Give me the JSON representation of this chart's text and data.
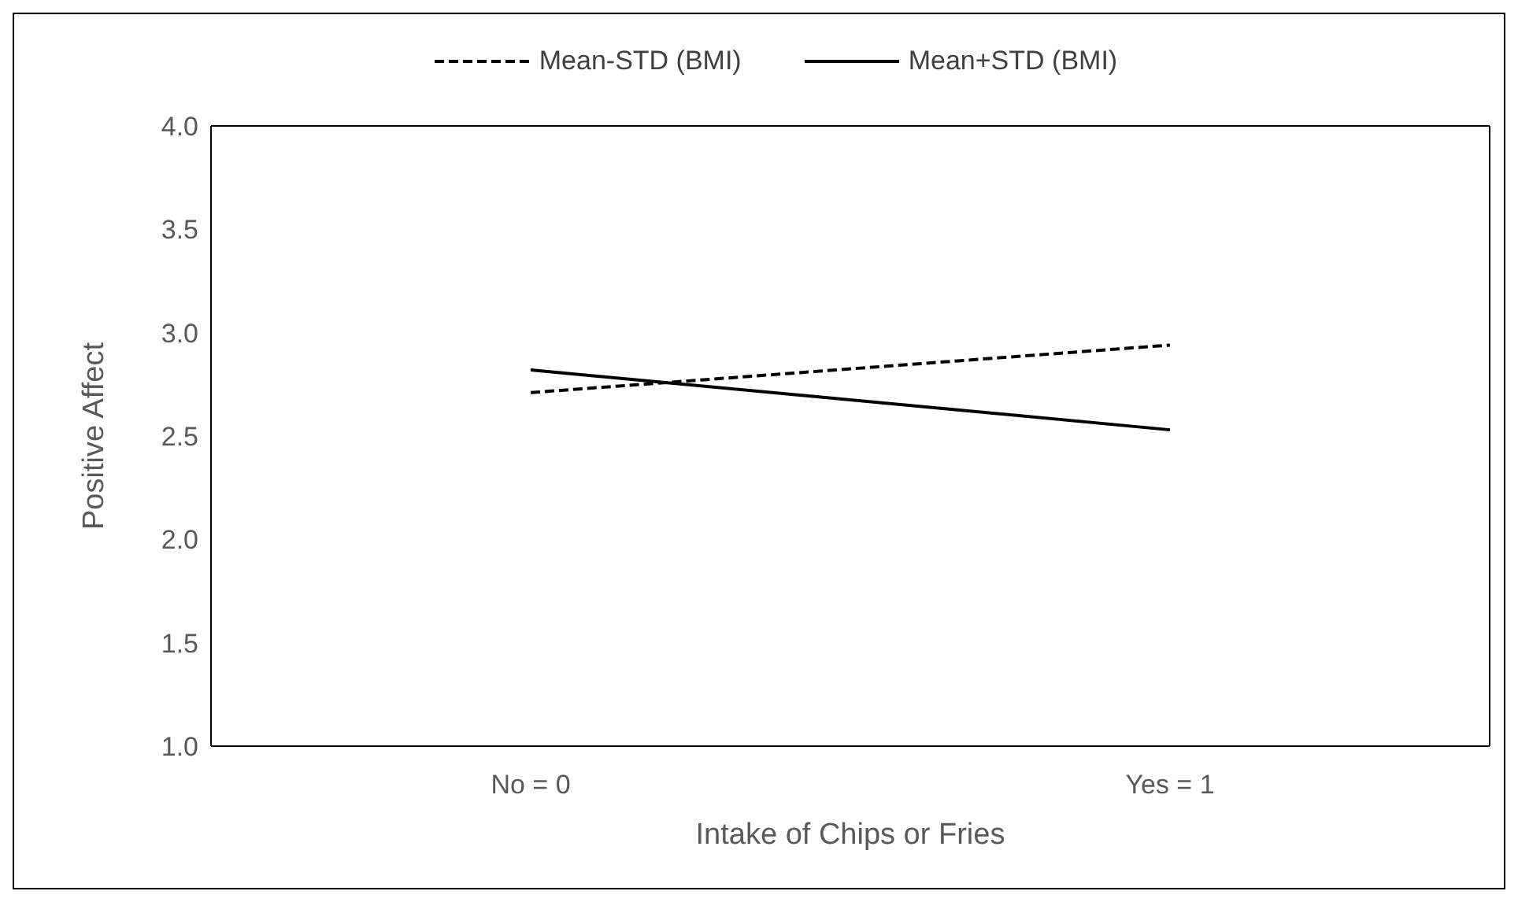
{
  "chart_data": {
    "type": "line",
    "xlabel": "Intake of Chips or Fries",
    "ylabel": "Positive Affect",
    "categories": [
      "No = 0",
      "Yes = 1"
    ],
    "series": [
      {
        "name": "Mean-STD (BMI)",
        "color": "#000000",
        "line_style": "dashed",
        "values": [
          2.71,
          2.94
        ]
      },
      {
        "name": "Mean+STD (BMI)",
        "color": "#000000",
        "line_style": "solid",
        "values": [
          2.82,
          2.53
        ]
      }
    ],
    "ylim": [
      1,
      4
    ],
    "yticks": [
      {
        "value": 1,
        "label": "1.0"
      },
      {
        "value": 1.5,
        "label": "1.5"
      },
      {
        "value": 2,
        "label": "2.0"
      },
      {
        "value": 2.5,
        "label": "2.5"
      },
      {
        "value": 3,
        "label": "3.0"
      },
      {
        "value": 3.5,
        "label": "3.5"
      },
      {
        "value": 4,
        "label": "4.0"
      }
    ],
    "grid": false,
    "legend": "top",
    "marker": "none"
  }
}
